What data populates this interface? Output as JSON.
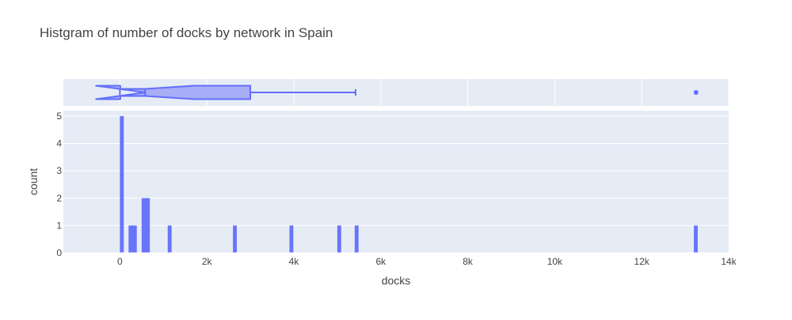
{
  "chart_data": {
    "type": "histogram",
    "title": "Histgram of number of docks by network in Spain",
    "xlabel": "docks",
    "ylabel": "count",
    "xlim": [
      -1300,
      14000
    ],
    "ylim": [
      0,
      5.2
    ],
    "x_tick_values": [
      0,
      2000,
      4000,
      6000,
      8000,
      10000,
      12000,
      14000
    ],
    "x_tick_labels": [
      "0",
      "2k",
      "4k",
      "6k",
      "8k",
      "10k",
      "12k",
      "14k"
    ],
    "y_tick_values": [
      0,
      1,
      2,
      3,
      4,
      5
    ],
    "y_tick_labels": [
      "0",
      "1",
      "2",
      "3",
      "4",
      "5"
    ],
    "grid": true,
    "bar_color": "#636efa",
    "plot_bg": "#e5ecf6",
    "histogram": {
      "bins": [
        {
          "start": 0,
          "end": 100,
          "count": 5
        },
        {
          "start": 200,
          "end": 400,
          "count": 1
        },
        {
          "start": 500,
          "end": 700,
          "count": 2
        },
        {
          "start": 1100,
          "end": 1200,
          "count": 1
        },
        {
          "start": 2600,
          "end": 2700,
          "count": 1
        },
        {
          "start": 3900,
          "end": 4000,
          "count": 1
        },
        {
          "start": 5000,
          "end": 5100,
          "count": 1
        },
        {
          "start": 5400,
          "end": 5500,
          "count": 1
        },
        {
          "start": 13200,
          "end": 13300,
          "count": 1
        }
      ]
    },
    "box": {
      "orientation": "horizontal",
      "notched": true,
      "min": 0,
      "q1": 10,
      "median": 580,
      "q3": 3000,
      "whisker_high": 5420,
      "notch_low": -550,
      "notch_high": 1700,
      "outliers": [
        13250
      ],
      "fill": "#a7adf7",
      "line": "#636efa"
    }
  }
}
